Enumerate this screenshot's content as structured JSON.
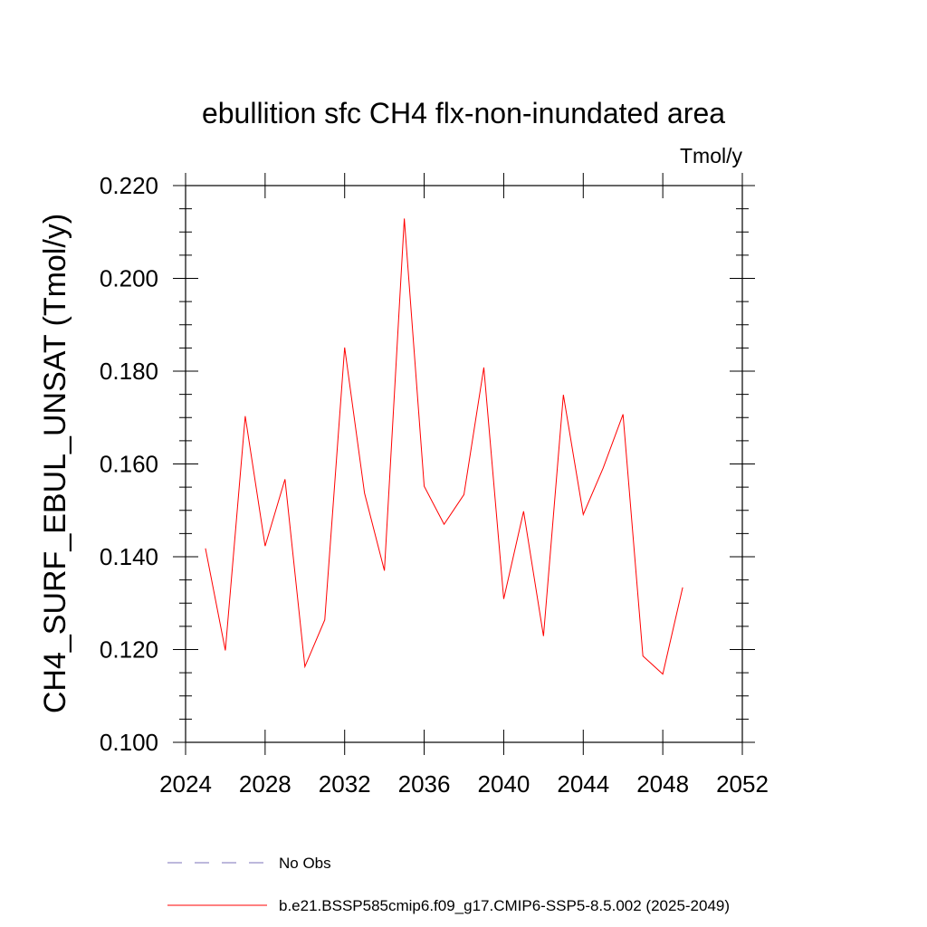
{
  "chart_data": {
    "type": "line",
    "title": "ebullition sfc CH4 flx-non-inundated area",
    "units_label": "Tmol/y",
    "ylabel": "CH4_SURF_EBUL_UNSAT  (Tmol/y)",
    "xlabel": "",
    "xlim": [
      2024,
      2052
    ],
    "ylim": [
      0.1,
      0.22
    ],
    "x_ticks": [
      2024,
      2028,
      2032,
      2036,
      2040,
      2044,
      2048,
      2052
    ],
    "x_tick_labels": [
      "2024",
      "2028",
      "2032",
      "2036",
      "2040",
      "2044",
      "2048",
      "2052"
    ],
    "y_ticks": [
      0.1,
      0.12,
      0.14,
      0.16,
      0.18,
      0.2,
      0.22
    ],
    "y_tick_labels": [
      "0.100",
      "0.120",
      "0.140",
      "0.160",
      "0.180",
      "0.200",
      "0.220"
    ],
    "grid": false,
    "legend_position": "bottom",
    "series": [
      {
        "name": "b.e21.BSSP585cmip6.f09_g17.CMIP6-SSP5-8.5.002 (2025-2049)",
        "color": "#ff0000",
        "dash": "solid",
        "x": [
          2025,
          2026,
          2027,
          2028,
          2029,
          2030,
          2031,
          2032,
          2033,
          2034,
          2035,
          2036,
          2037,
          2038,
          2039,
          2040,
          2041,
          2042,
          2043,
          2044,
          2045,
          2046,
          2047,
          2048,
          2049
        ],
        "y": [
          0.1418,
          0.1198,
          0.1703,
          0.1423,
          0.1567,
          0.1163,
          0.1264,
          0.1851,
          0.1537,
          0.137,
          0.2129,
          0.1552,
          0.147,
          0.1534,
          0.1808,
          0.1309,
          0.1498,
          0.1229,
          0.1749,
          0.1491,
          0.1591,
          0.1707,
          0.1186,
          0.1147,
          0.1334
        ]
      }
    ],
    "legend": [
      {
        "label": "No Obs",
        "color": "#7b72b8",
        "dash": "dashed"
      },
      {
        "label": "b.e21.BSSP585cmip6.f09_g17.CMIP6-SSP5-8.5.002 (2025-2049)",
        "color": "#ff0000",
        "dash": "solid"
      }
    ]
  }
}
